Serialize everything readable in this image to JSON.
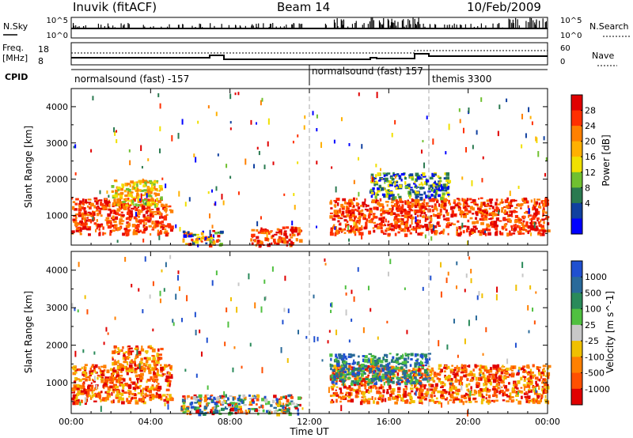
{
  "header": {
    "station": "Inuvik (fitACF)",
    "beam": "Beam 14",
    "date": "10/Feb/2009"
  },
  "panels": {
    "nsky": {
      "label": "N.Sky",
      "right_label": "N.Search",
      "y_ticks_left": [
        "10^5",
        "10^0"
      ],
      "y_ticks_right": [
        "10^5",
        "10^0"
      ]
    },
    "freq": {
      "label_line1": "Freq.",
      "label_line2": "[MHz]",
      "y_ticks_left": [
        "18",
        "8"
      ],
      "y_ticks_right": [
        "60",
        "0"
      ],
      "right_label": "Nave"
    },
    "cpid": {
      "label": "CPID",
      "segments": [
        {
          "start": 0,
          "end": 12,
          "name": "normalsound (fast) -157"
        },
        {
          "start": 12,
          "end": 18,
          "name": "normalsound (fast) 157"
        },
        {
          "start": 18,
          "end": 24,
          "name": "themis 3300"
        }
      ]
    }
  },
  "chart_data": [
    {
      "type": "heatmap",
      "title": "Power",
      "ylabel": "Slant Range [km]",
      "ylim": [
        180,
        4500
      ],
      "y_ticks": [
        1000,
        2000,
        3000,
        4000
      ],
      "colorbar": {
        "label": "Power [dB]",
        "ticks": [
          "28",
          "24",
          "20",
          "16",
          "12",
          "8",
          "4"
        ],
        "colors": [
          "#e00000",
          "#ff3000",
          "#ff8000",
          "#ffb000",
          "#f0e000",
          "#70c030",
          "#2a7a50",
          "#1040a0",
          "#0000ff"
        ]
      },
      "regions": [
        {
          "x": [
            0.0,
            5.0
          ],
          "y": [
            500,
            1500
          ],
          "level": "high"
        },
        {
          "x": [
            2.0,
            4.5
          ],
          "y": [
            1300,
            2000
          ],
          "level": "mid"
        },
        {
          "x": [
            5.5,
            7.5
          ],
          "y": [
            200,
            600
          ],
          "level": "mixed"
        },
        {
          "x": [
            9.0,
            11.5
          ],
          "y": [
            200,
            700
          ],
          "level": "high"
        },
        {
          "x": [
            13.0,
            24.0
          ],
          "y": [
            500,
            1500
          ],
          "level": "high"
        },
        {
          "x": [
            15.0,
            19.0
          ],
          "y": [
            1500,
            2200
          ],
          "level": "low"
        }
      ]
    },
    {
      "type": "heatmap",
      "title": "Velocity",
      "ylabel": "Slant Range [km]",
      "ylim": [
        180,
        4500
      ],
      "y_ticks": [
        1000,
        2000,
        3000,
        4000
      ],
      "colorbar": {
        "label": "Velocity [m s^-1]",
        "ticks": [
          "1000",
          "500",
          "100",
          "25",
          "-25",
          "-100",
          "-500",
          "-1000"
        ],
        "colors": [
          "#2050d0",
          "#2a6a9a",
          "#2a8a5a",
          "#50c040",
          "#c8c8c8",
          "#f0c000",
          "#ff8000",
          "#ff5000",
          "#e00000"
        ]
      },
      "regions": [
        {
          "x": [
            0.0,
            5.0
          ],
          "y": [
            500,
            1500
          ],
          "level": "negative"
        },
        {
          "x": [
            2.0,
            4.5
          ],
          "y": [
            1300,
            2000
          ],
          "level": "negative"
        },
        {
          "x": [
            5.5,
            11.5
          ],
          "y": [
            200,
            700
          ],
          "level": "mixed"
        },
        {
          "x": [
            13.0,
            24.0
          ],
          "y": [
            500,
            1500
          ],
          "level": "negative"
        },
        {
          "x": [
            13.0,
            18.0
          ],
          "y": [
            1000,
            1800
          ],
          "level": "positive"
        }
      ]
    }
  ],
  "x_axis": {
    "label": "Time UT",
    "xlim": [
      0,
      24
    ],
    "ticks": [
      "00:00",
      "04:00",
      "08:00",
      "12:00",
      "16:00",
      "20:00",
      "00:00"
    ]
  }
}
